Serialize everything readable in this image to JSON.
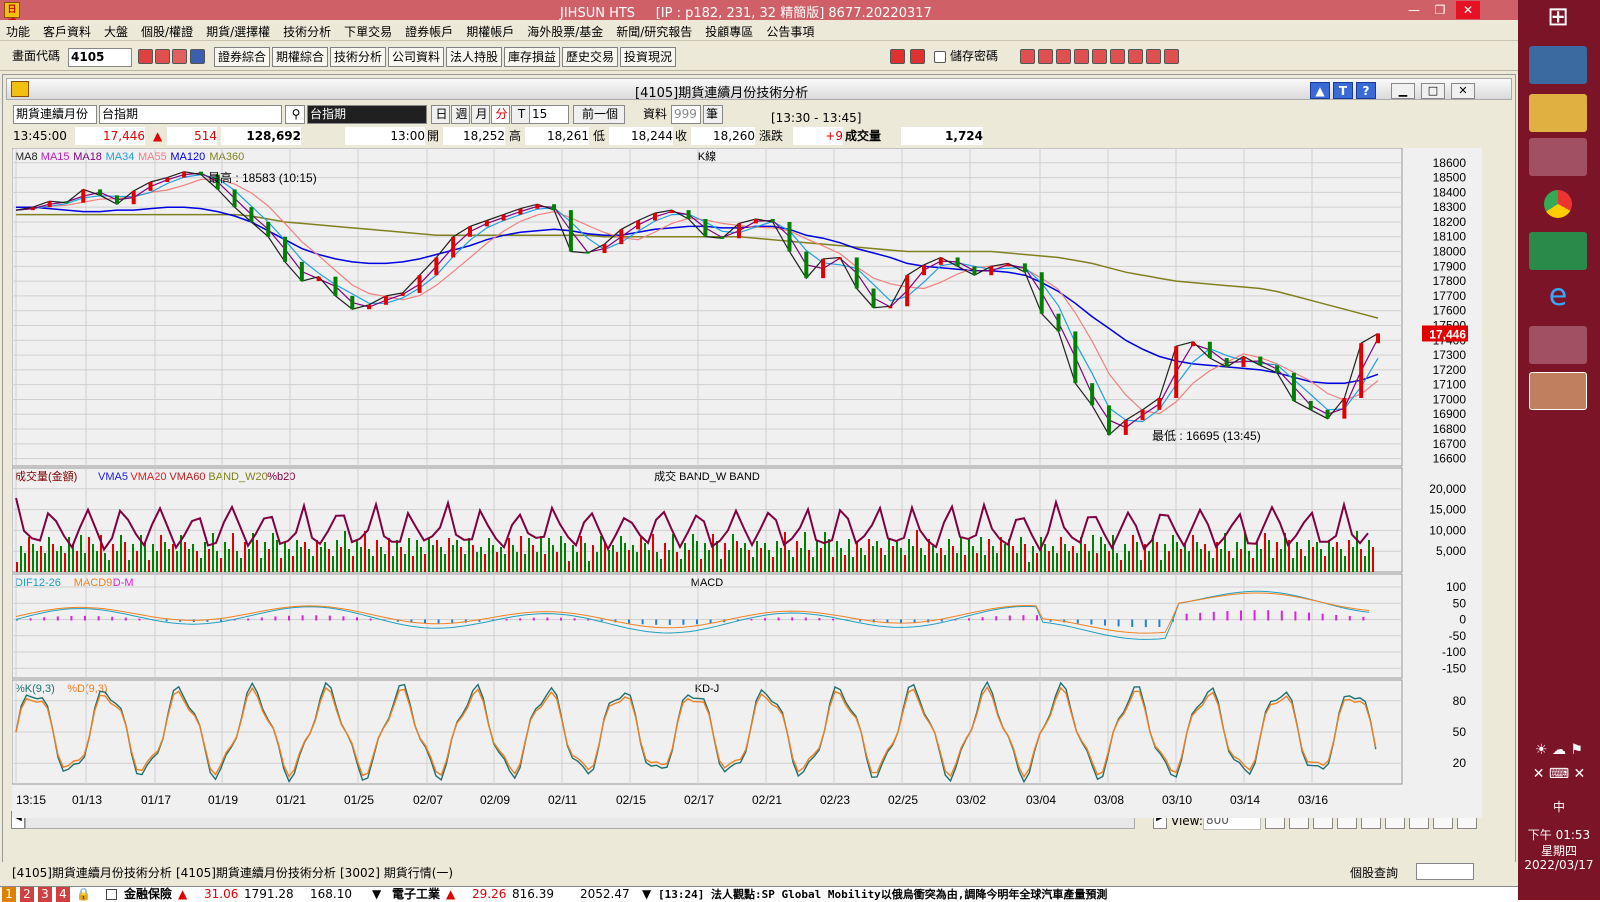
{
  "window": {
    "title": "JIHSUN HTS",
    "ip": "[IP : p182, 231, 32 精簡版]",
    "build": "8677.20220317",
    "logo": "日盛",
    "min": "—",
    "max": "❐",
    "close": "✕"
  },
  "menu": [
    "功能",
    "客戶資料",
    "大盤",
    "個股/權證",
    "期貨/選擇權",
    "技術分析",
    "下單交易",
    "證券帳戶",
    "期權帳戶",
    "海外股票/基金",
    "新聞/研究報告",
    "投顧專區",
    "公告事項"
  ],
  "toolbar": {
    "code_label": "畫面代碼",
    "code_value": "4105",
    "buttons": [
      "證券綜合",
      "期權綜合",
      "技術分析",
      "公司資料",
      "法人持股",
      "庫存損益",
      "歷史交易",
      "投資現況"
    ],
    "save_password": "儲存密碼"
  },
  "inner": {
    "title": "[4105]期貨連續月份技術分析",
    "help_buttons": [
      "▲",
      "T",
      "?"
    ]
  },
  "controls": {
    "contract": "期貨連續月份",
    "product": "台指期",
    "product_search": "台指期",
    "periods": [
      "日",
      "週",
      "月",
      "分",
      "T"
    ],
    "interval": "15",
    "prev": "前一個",
    "data_label": "資料",
    "data_value": "999",
    "data_unit": "筆",
    "range": "[13:30 - 13:45]"
  },
  "quote": {
    "time": "13:45:00",
    "price": "17,446",
    "arrow": "▲",
    "change": "514",
    "volume": "128,692",
    "bar_time": "13:00",
    "open_label": "開",
    "open": "18,252",
    "high_label": "高",
    "high": "18,261",
    "low_label": "低",
    "low": "18,244",
    "close_label": "收",
    "close": "18,260",
    "chg_label": "漲跌",
    "chg": "+9",
    "vol_label": "成交量",
    "vol": "1,724"
  },
  "chart_data": [
    {
      "type": "line",
      "panel": "K線",
      "legend": [
        "MA8",
        "MA15",
        "MA18",
        "MA34",
        "MA55",
        "MA120",
        "MA360"
      ],
      "legend_colors": [
        "#202020",
        "#c020c0",
        "#800080",
        "#20a0e0",
        "#f08080",
        "#0000e0",
        "#808020"
      ],
      "y_ticks": [
        18600,
        18500,
        18400,
        18300,
        18200,
        18100,
        18000,
        17900,
        17800,
        17700,
        17600,
        17500,
        17400,
        17300,
        17200,
        17100,
        17000,
        16900,
        16800,
        16700,
        16600
      ],
      "ylim": [
        16550,
        18700
      ],
      "last_price": "17,446",
      "high_note": "最高 : 18583 (10:15)",
      "low_note": "最低 : 16695 (13:45)",
      "price": [
        18280,
        18300,
        18340,
        18330,
        18420,
        18380,
        18320,
        18410,
        18470,
        18500,
        18540,
        18520,
        18420,
        18300,
        18200,
        18100,
        17930,
        17800,
        17830,
        17700,
        17610,
        17640,
        17700,
        17720,
        17840,
        17960,
        18100,
        18170,
        18210,
        18250,
        18290,
        18320,
        18280,
        18000,
        17990,
        18050,
        18150,
        18210,
        18260,
        18280,
        18220,
        18100,
        18090,
        18190,
        18220,
        18200,
        18000,
        17820,
        17950,
        17960,
        17750,
        17620,
        17630,
        17840,
        17910,
        17960,
        17900,
        17840,
        17900,
        17920,
        17860,
        17580,
        17460,
        17110,
        16960,
        16760,
        16860,
        16930,
        17010,
        17360,
        17390,
        17280,
        17220,
        17290,
        17230,
        17180,
        16990,
        16930,
        16870,
        17010,
        17380,
        17446
      ],
      "ma120": [
        18300,
        18300,
        18290,
        18280,
        18270,
        18270,
        18280,
        18280,
        18290,
        18300,
        18300,
        18290,
        18270,
        18240,
        18200,
        18140,
        18080,
        18020,
        17980,
        17950,
        17930,
        17920,
        17920,
        17930,
        17950,
        17980,
        18010,
        18040,
        18080,
        18110,
        18130,
        18140,
        18150,
        18140,
        18120,
        18110,
        18110,
        18130,
        18150,
        18160,
        18170,
        18170,
        18160,
        18160,
        18170,
        18170,
        18150,
        18110,
        18090,
        18060,
        18020,
        17990,
        17960,
        17920,
        17900,
        17890,
        17880,
        17870,
        17870,
        17860,
        17840,
        17790,
        17730,
        17650,
        17560,
        17480,
        17400,
        17340,
        17290,
        17260,
        17240,
        17230,
        17220,
        17210,
        17200,
        17180,
        17150,
        17120,
        17110,
        17110,
        17130,
        17170
      ],
      "ma360": [
        18250,
        18250,
        18250,
        18250,
        18250,
        18250,
        18250,
        18250,
        18250,
        18250,
        18250,
        18250,
        18250,
        18250,
        18240,
        18220,
        18200,
        18190,
        18180,
        18170,
        18160,
        18150,
        18140,
        18130,
        18120,
        18110,
        18110,
        18110,
        18110,
        18110,
        18110,
        18110,
        18110,
        18110,
        18110,
        18100,
        18100,
        18100,
        18100,
        18100,
        18100,
        18100,
        18100,
        18100,
        18090,
        18080,
        18070,
        18060,
        18050,
        18040,
        18030,
        18020,
        18010,
        18000,
        18000,
        18000,
        18000,
        18000,
        18000,
        17990,
        17980,
        17970,
        17960,
        17940,
        17920,
        17890,
        17860,
        17840,
        17820,
        17800,
        17790,
        17780,
        17770,
        17760,
        17750,
        17730,
        17700,
        17670,
        17640,
        17610,
        17580,
        17550
      ]
    },
    {
      "type": "bar",
      "panel": "成交 BAND_W BAND",
      "legend": [
        "成交量(金額)",
        "VMA5",
        "VMA20",
        "VMA60",
        "BAND_W20",
        "%b20"
      ],
      "legend_colors": [
        "#800000",
        "#2020e0",
        "#e02020",
        "#c02020",
        "#808020",
        "#800040"
      ],
      "y_ticks": [
        "20,000",
        "15,000",
        "10,000",
        "5,000"
      ],
      "ylim": [
        0,
        25000
      ]
    },
    {
      "type": "line",
      "panel": "MACD",
      "legend": [
        "DIF12-26",
        "MACD9",
        "D-M"
      ],
      "legend_colors": [
        "#20a0c0",
        "#f08020",
        "#e020e0"
      ],
      "y_ticks": [
        100,
        50,
        0,
        -50,
        -100,
        -150
      ],
      "ylim": [
        -180,
        140
      ]
    },
    {
      "type": "line",
      "panel": "KD-J",
      "legend": [
        "%K(9,3)",
        "%D(9,3)"
      ],
      "legend_colors": [
        "#207070",
        "#f08020"
      ],
      "y_ticks": [
        80,
        50,
        20
      ],
      "ylim": [
        0,
        100
      ]
    }
  ],
  "x_axis": [
    "13:15",
    "01/13",
    "01/17",
    "01/19",
    "01/21",
    "01/25",
    "02/07",
    "02/09",
    "02/11",
    "02/15",
    "02/17",
    "02/21",
    "02/23",
    "02/25",
    "03/02",
    "03/04",
    "03/08",
    "03/10",
    "03/14",
    "03/16"
  ],
  "view": {
    "label": "View:",
    "value": "800"
  },
  "tabs": [
    "[4105]期貨連續月份技術分析",
    "[4105]期貨連續月份技術分析",
    "[3002] 期貨行情(一)"
  ],
  "tab_right": "個股查詢",
  "status": {
    "pages": [
      "1",
      "2",
      "3",
      "4"
    ],
    "item1_name": "金融保險",
    "item1_chg": "31.06",
    "item1_idx": "1791.28",
    "item1_vol": "168.10",
    "item2_name": "電子工業",
    "item2_chg": "29.26",
    "item2_idx": "816.39",
    "item2_vol": "2052.47",
    "news": "[13:24] 法人觀點:SP Global Mobility以俄烏衝突為由,調降今明年全球汽車產量預測"
  },
  "taskbar": {
    "time": "下午 01:53",
    "day": "星期四",
    "date": "2022/03/17",
    "ime": "中"
  }
}
